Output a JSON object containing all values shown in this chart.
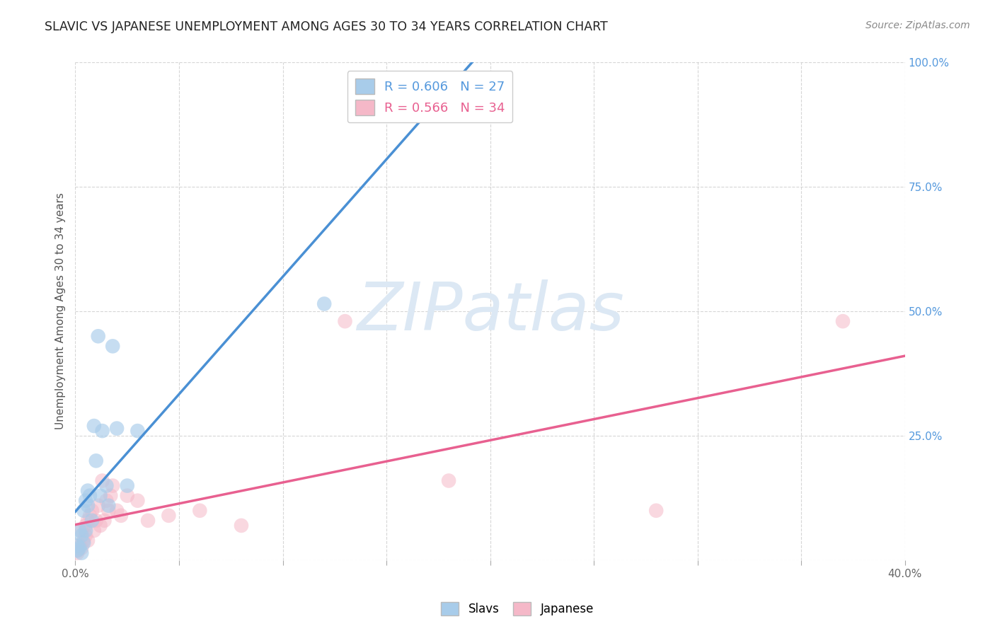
{
  "title": "SLAVIC VS JAPANESE UNEMPLOYMENT AMONG AGES 30 TO 34 YEARS CORRELATION CHART",
  "source": "Source: ZipAtlas.com",
  "ylabel": "Unemployment Among Ages 30 to 34 years",
  "xlim": [
    0,
    0.4
  ],
  "ylim": [
    0,
    1.0
  ],
  "xtick_positions": [
    0.0,
    0.05,
    0.1,
    0.15,
    0.2,
    0.25,
    0.3,
    0.35,
    0.4
  ],
  "ytick_positions": [
    0.0,
    0.25,
    0.5,
    0.75,
    1.0
  ],
  "right_ytick_labels": [
    "",
    "25.0%",
    "50.0%",
    "75.0%",
    "100.0%"
  ],
  "slavs_R": 0.606,
  "slavs_N": 27,
  "japanese_R": 0.566,
  "japanese_N": 34,
  "slavs_color": "#a8ccea",
  "japanese_color": "#f5b8c8",
  "slavs_line_color": "#4a90d4",
  "japanese_line_color": "#e86090",
  "slavs_legend_color": "#5599dd",
  "japanese_legend_color": "#e86090",
  "watermark_text": "ZIPatlas",
  "watermark_color": "#dce8f4",
  "slavs_x": [
    0.001,
    0.001,
    0.002,
    0.002,
    0.003,
    0.003,
    0.004,
    0.004,
    0.005,
    0.005,
    0.006,
    0.006,
    0.007,
    0.008,
    0.009,
    0.01,
    0.011,
    0.012,
    0.013,
    0.015,
    0.016,
    0.018,
    0.02,
    0.025,
    0.03,
    0.12,
    0.17
  ],
  "slavs_y": [
    0.02,
    0.03,
    0.025,
    0.06,
    0.015,
    0.05,
    0.035,
    0.1,
    0.06,
    0.12,
    0.11,
    0.14,
    0.13,
    0.08,
    0.27,
    0.2,
    0.45,
    0.13,
    0.26,
    0.15,
    0.11,
    0.43,
    0.265,
    0.15,
    0.26,
    0.515,
    0.96
  ],
  "japanese_x": [
    0.001,
    0.001,
    0.002,
    0.003,
    0.003,
    0.004,
    0.005,
    0.005,
    0.006,
    0.006,
    0.007,
    0.008,
    0.009,
    0.01,
    0.011,
    0.012,
    0.013,
    0.014,
    0.015,
    0.016,
    0.017,
    0.018,
    0.02,
    0.022,
    0.025,
    0.03,
    0.035,
    0.045,
    0.06,
    0.08,
    0.13,
    0.18,
    0.28,
    0.37
  ],
  "japanese_y": [
    0.015,
    0.02,
    0.03,
    0.025,
    0.06,
    0.04,
    0.05,
    0.07,
    0.04,
    0.08,
    0.09,
    0.1,
    0.06,
    0.08,
    0.11,
    0.07,
    0.16,
    0.08,
    0.12,
    0.1,
    0.13,
    0.15,
    0.1,
    0.09,
    0.13,
    0.12,
    0.08,
    0.09,
    0.1,
    0.07,
    0.48,
    0.16,
    0.1,
    0.48
  ],
  "slavs_trend_x": [
    0.0,
    0.4
  ],
  "japanese_trend_x": [
    0.0,
    0.4
  ],
  "title_fontsize": 12.5,
  "source_fontsize": 10,
  "tick_fontsize": 11,
  "legend_fontsize": 13,
  "ylabel_fontsize": 11
}
